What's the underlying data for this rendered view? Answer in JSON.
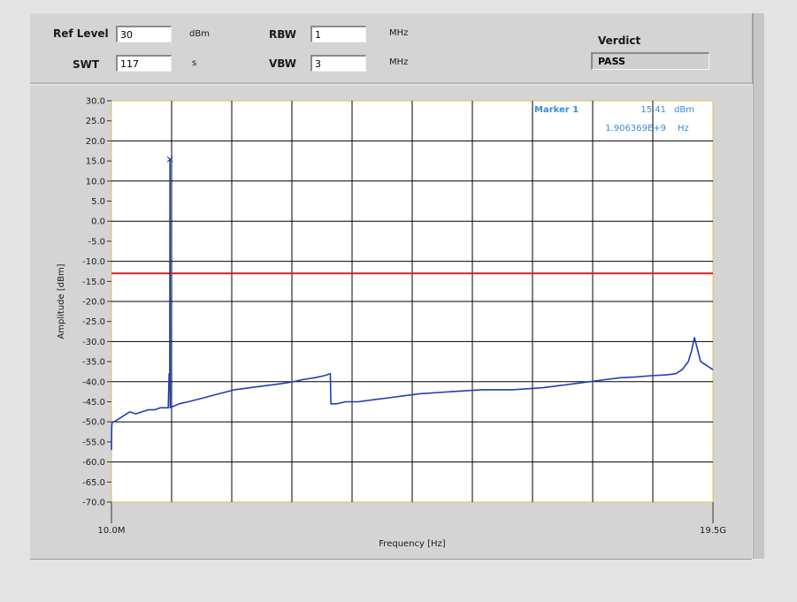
{
  "settings": {
    "ref_level": {
      "label": "Ref Level",
      "value": "30",
      "unit": "dBm"
    },
    "swt": {
      "label": "SWT",
      "value": "117",
      "unit": "s"
    },
    "rbw": {
      "label": "RBW",
      "value": "1",
      "unit": "MHz"
    },
    "vbw": {
      "label": "VBW",
      "value": "3",
      "unit": "MHz"
    }
  },
  "verdict": {
    "label": "Verdict",
    "value": "PASS"
  },
  "marker": {
    "name": "Marker 1",
    "amplitude": "15.41",
    "amplitude_unit": "dBm",
    "frequency": "1.906369E+9",
    "frequency_unit": "Hz"
  },
  "colors": {
    "trace": "#1f3fb4",
    "limit_line": "#d42020",
    "marker_text": "#3a8ad8",
    "plot_background": "#ffffff",
    "grid": "#000000"
  },
  "chart_data": {
    "type": "line",
    "xlabel": "Frequency [Hz]",
    "ylabel": "Amplitude [dBm]",
    "x_range": [
      10000000,
      19500000000
    ],
    "x_tick_labels": [
      "10.0M",
      "19.5G"
    ],
    "ylim": [
      -70,
      30
    ],
    "y_ticks": [
      "30.0",
      "25.0",
      "20.0",
      "15.0",
      "10.0",
      "5.0",
      "0.0",
      "-5.0",
      "-10.0",
      "-15.0",
      "-20.0",
      "-25.0",
      "-30.0",
      "-35.0",
      "-40.0",
      "-45.0",
      "-50.0",
      "-55.0",
      "-60.0",
      "-65.0",
      "-70.0"
    ],
    "grid": true,
    "limit_line": {
      "value": -13,
      "color": "#d42020"
    },
    "series": [
      {
        "color": "#1f3fb4",
        "x_ghz": [
          0.01,
          0.02,
          0.04,
          0.06,
          0.1,
          0.2,
          0.4,
          0.6,
          0.8,
          1.0,
          1.2,
          1.4,
          1.6,
          1.7,
          1.8,
          1.85,
          1.88,
          1.9,
          1.906,
          1.912,
          1.93,
          1.95,
          2.0,
          2.2,
          2.5,
          3.0,
          3.5,
          4.0,
          4.5,
          5.0,
          5.5,
          5.9,
          6.2,
          6.6,
          6.9,
          7.1,
          7.12,
          7.3,
          7.6,
          8.0,
          8.5,
          9.0,
          9.5,
          10.0,
          11.0,
          12.0,
          13.0,
          14.0,
          14.5,
          15.0,
          15.5,
          16.0,
          16.5,
          17.0,
          17.5,
          18.0,
          18.3,
          18.5,
          18.7,
          18.8,
          18.9,
          19.0,
          19.1,
          19.3,
          19.5
        ],
        "y_dbm": [
          -57,
          -51,
          -50,
          -50,
          -50,
          -49.5,
          -48.5,
          -47.5,
          -48,
          -47.5,
          -47,
          -47,
          -46.5,
          -46.5,
          -46.5,
          -46.5,
          -38,
          -40,
          15.41,
          -46.5,
          -46.3,
          -46.3,
          -46.2,
          -45.5,
          -45,
          -44,
          -43,
          -42,
          -41.5,
          -41,
          -40.5,
          -40,
          -39.5,
          -39,
          -38.5,
          -38,
          -45.5,
          -45.5,
          -45,
          -45,
          -44.5,
          -44,
          -43.5,
          -43,
          -42.5,
          -42,
          -42,
          -41.5,
          -41,
          -40.5,
          -40,
          -39.5,
          -39,
          -38.8,
          -38.5,
          -38.3,
          -38,
          -37,
          -35,
          -32.5,
          -29,
          -32,
          -35,
          -36,
          -37
        ]
      }
    ]
  }
}
